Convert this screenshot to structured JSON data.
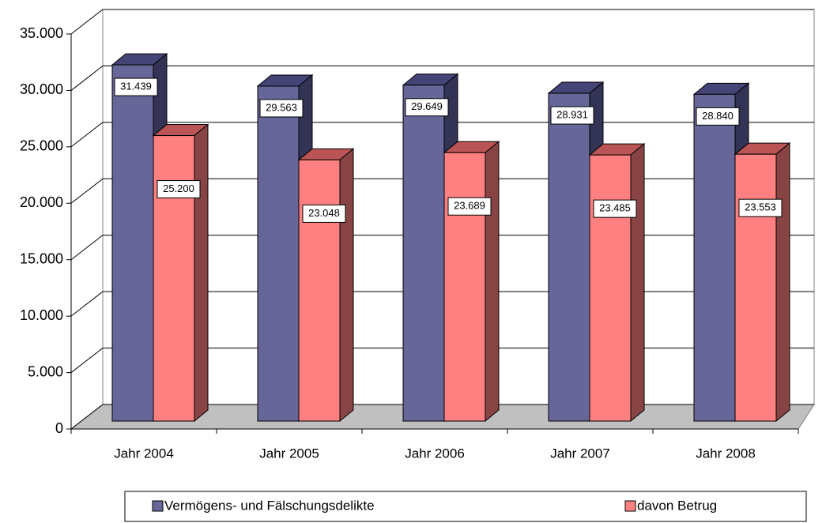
{
  "chart_data": {
    "type": "bar3d",
    "categories": [
      "Jahr 2004",
      "Jahr 2005",
      "Jahr 2006",
      "Jahr 2007",
      "Jahr 2008"
    ],
    "series": [
      {
        "name": "Vermögens- und Fälschungsdelikte",
        "color": "#666699",
        "values": [
          31439,
          29563,
          29649,
          28931,
          28840
        ],
        "value_labels": [
          "31.439",
          "29.563",
          "29.649",
          "28.931",
          "28.840"
        ]
      },
      {
        "name": "davon Betrug",
        "color": "#ff8080",
        "values": [
          25200,
          23048,
          23689,
          23485,
          23553
        ],
        "value_labels": [
          "25.200",
          "23.048",
          "23.689",
          "23.485",
          "23.553"
        ]
      }
    ],
    "ylim": [
      0,
      35000
    ],
    "yticks": [
      0,
      {
        "value": 5000,
        "label": "5.000"
      },
      {
        "value": 10000,
        "label": "10.000"
      },
      {
        "value": 15000,
        "label": "15.000"
      },
      {
        "value": 20000,
        "label": "20.000"
      },
      {
        "value": 25000,
        "label": "25.000"
      },
      {
        "value": 30000,
        "label": "30.000"
      },
      {
        "value": 35000,
        "label": "35.000"
      }
    ],
    "grid": true,
    "legend": "bottom"
  }
}
